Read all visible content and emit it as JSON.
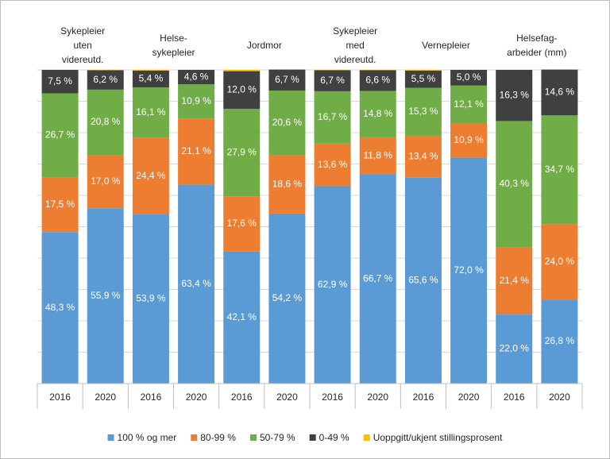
{
  "chart_data": {
    "type": "stacked_bar",
    "groups": [
      [
        "Sykepleier",
        "uten",
        "videreutd."
      ],
      [
        "Helse-",
        "sykepleier"
      ],
      [
        "Jordmor"
      ],
      [
        "Sykepleier",
        "med",
        "videreutd."
      ],
      [
        "Vernepleier"
      ],
      [
        "Helsefag-",
        "arbeider (mm)"
      ]
    ],
    "categories": [
      "2016",
      "2020",
      "2016",
      "2020",
      "2016",
      "2020",
      "2016",
      "2020",
      "2016",
      "2020",
      "2016",
      "2020"
    ],
    "ylim": [
      0,
      100
    ],
    "yticks": [
      0,
      10,
      20,
      30,
      40,
      50,
      60,
      70,
      80,
      90,
      100
    ],
    "grid": true,
    "series": [
      {
        "name": "100 % og mer",
        "color": "#5b9bd5",
        "values": [
          48.3,
          55.9,
          53.9,
          63.4,
          42.1,
          54.2,
          62.9,
          66.7,
          65.6,
          72.0,
          22.0,
          26.8
        ],
        "value_labels": [
          "48,3 %",
          "55,9 %",
          "53,9 %",
          "63,4 %",
          "42,1 %",
          "54,2 %",
          "62,9 %",
          "66,7 %",
          "65,6 %",
          "72,0 %",
          "22,0 %",
          "26,8 %"
        ]
      },
      {
        "name": "80-99 %",
        "color": "#ed7d31",
        "values": [
          17.5,
          17.0,
          24.4,
          21.1,
          17.6,
          18.6,
          13.6,
          11.8,
          13.4,
          10.9,
          21.4,
          24.0
        ],
        "value_labels": [
          "17,5 %",
          "17,0 %",
          "24,4 %",
          "21,1 %",
          "17,6 %",
          "18,6 %",
          "13,6 %",
          "11,8 %",
          "13,4 %",
          "10,9 %",
          "21,4 %",
          "24,0 %"
        ]
      },
      {
        "name": "50-79 %",
        "color": "#70ad47",
        "values": [
          26.7,
          20.8,
          16.1,
          10.9,
          27.9,
          20.6,
          16.7,
          14.8,
          15.3,
          12.1,
          40.3,
          34.7
        ],
        "value_labels": [
          "26,7 %",
          "20,8 %",
          "16,1 %",
          "10,9 %",
          "27,9 %",
          "20,6 %",
          "16,7 %",
          "14,8 %",
          "15,3 %",
          "12,1 %",
          "40,3 %",
          "34,7 %"
        ]
      },
      {
        "name": "0-49 %",
        "color": "#404040",
        "values": [
          7.5,
          6.2,
          5.4,
          4.6,
          12.0,
          6.7,
          6.7,
          6.6,
          5.5,
          5.0,
          16.3,
          14.6
        ],
        "value_labels": [
          "7,5 %",
          "6,2 %",
          "5,4 %",
          "4,6 %",
          "12,0 %",
          "6,7 %",
          "6,7 %",
          "6,6 %",
          "5,5 %",
          "5,0 %",
          "16,3 %",
          "14,6 %"
        ]
      },
      {
        "name": "Uoppgitt/ukjent stillingsprosent",
        "color": "#ffc000",
        "values": [
          0,
          0.1,
          0.2,
          0,
          0.4,
          0,
          0.1,
          0.1,
          0.2,
          0,
          0,
          0
        ]
      }
    ]
  }
}
